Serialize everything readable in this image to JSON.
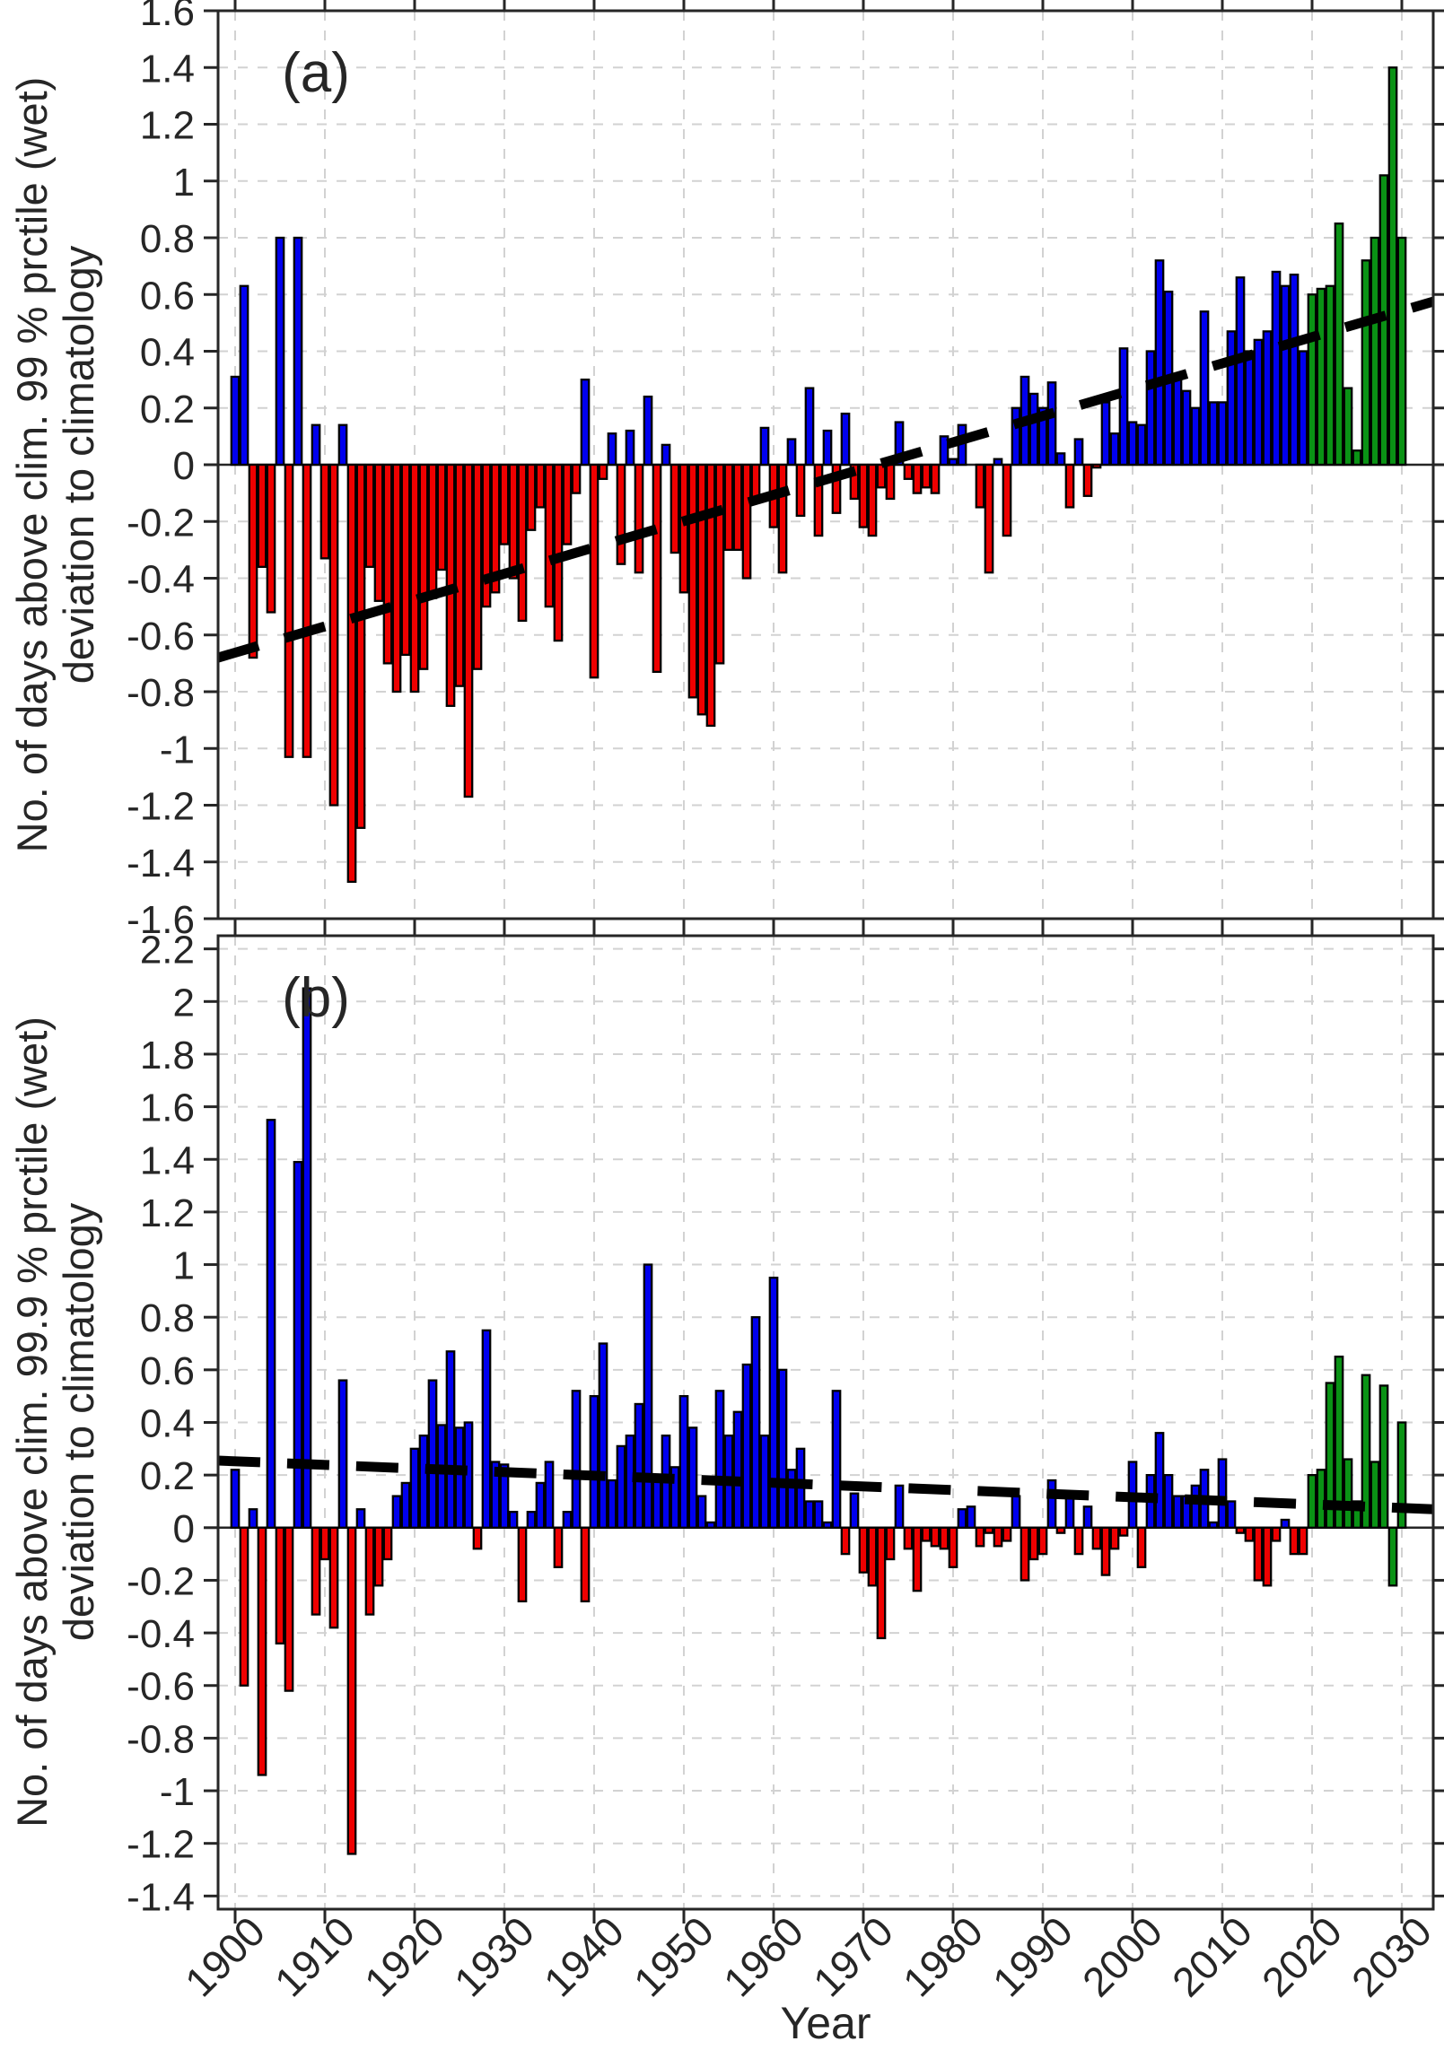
{
  "page": {
    "background": "#ffffff"
  },
  "figure": {
    "xlabel": "Year",
    "panel_a_label": "(a)",
    "panel_b_label": "(b)",
    "panel_a_ylabel_line1": "No. of days above clim. 99 % prctile (wet)",
    "panel_a_ylabel_line2": "deviation to climatology",
    "panel_b_ylabel_line1": "No. of days above clim. 99.9 % prctile (wet)",
    "panel_b_ylabel_line2": "deviation to climatology",
    "colors": {
      "historical_positive_bar": "#0000ee",
      "historical_negative_bar": "#ee0000",
      "future_bar": "#0a9215",
      "bar_edge": "#000000",
      "trend_line": "#000000",
      "grid": "#d2d2d2",
      "frame": "#262626",
      "text": "#262626"
    }
  },
  "chart_data": [
    {
      "id": "a",
      "type": "bar",
      "panel_label": "(a)",
      "ylabel": "No. of days above clim. 99 % prctile (wet) deviation to climatology",
      "xlabel": "Year",
      "x_years": {
        "start": 1900,
        "end": 2030,
        "step": 1
      },
      "values": [
        0.31,
        0.63,
        -0.68,
        -0.36,
        -0.52,
        0.8,
        -1.03,
        0.8,
        -1.03,
        0.14,
        -0.33,
        -1.2,
        0.14,
        -1.47,
        -1.28,
        -0.36,
        -0.48,
        -0.7,
        -0.8,
        -0.67,
        -0.8,
        -0.72,
        -0.47,
        -0.37,
        -0.85,
        -0.78,
        -1.17,
        -0.72,
        -0.5,
        -0.45,
        -0.28,
        -0.4,
        -0.55,
        -0.23,
        -0.15,
        -0.5,
        -0.62,
        -0.28,
        -0.1,
        0.3,
        -0.75,
        -0.05,
        0.11,
        -0.35,
        0.12,
        -0.38,
        0.24,
        -0.73,
        0.07,
        -0.31,
        -0.45,
        -0.82,
        -0.88,
        -0.92,
        -0.7,
        -0.3,
        -0.3,
        -0.4,
        -0.13,
        0.13,
        -0.22,
        -0.38,
        0.09,
        -0.18,
        0.27,
        -0.25,
        0.12,
        -0.17,
        0.18,
        -0.12,
        -0.22,
        -0.25,
        -0.08,
        -0.12,
        0.15,
        -0.05,
        -0.1,
        -0.08,
        -0.1,
        0.1,
        0.02,
        0.14,
        0.0,
        -0.15,
        -0.38,
        0.02,
        -0.25,
        0.2,
        0.31,
        0.25,
        0.2,
        0.29,
        0.04,
        -0.15,
        0.09,
        -0.11,
        -0.01,
        0.22,
        0.11,
        0.41,
        0.15,
        0.14,
        0.4,
        0.72,
        0.61,
        0.3,
        0.26,
        0.2,
        0.54,
        0.22,
        0.22,
        0.47,
        0.66,
        0.4,
        0.44,
        0.47,
        0.68,
        0.63,
        0.67,
        0.4,
        0.6,
        0.62,
        0.63,
        0.85,
        0.27,
        0.05,
        0.72,
        0.8,
        1.02,
        1.4,
        0.8
      ],
      "future_from_year": 2020,
      "ylim": [
        -1.6,
        1.6
      ],
      "yticks": [
        1.6,
        1.4,
        1.2,
        1,
        0.8,
        0.6,
        0.4,
        0.2,
        0,
        -0.2,
        -0.4,
        -0.6,
        -0.8,
        -1,
        -1.2,
        -1.4,
        -1.6
      ],
      "ytick_labels": [
        "1.6",
        "1.4",
        "1.2",
        "1",
        "0.8",
        "0.6",
        "0.4",
        "0.2",
        "0",
        "-0.2",
        "-0.4",
        "-0.6",
        "-0.8",
        "-1",
        "-1.2",
        "-1.4",
        "-1.6"
      ],
      "trend_line": {
        "style": "dashed",
        "color": "#000000",
        "x": [
          1898.1,
          2033.5
        ],
        "y": [
          -0.68,
          0.575
        ]
      },
      "grid": true,
      "legend": null
    },
    {
      "id": "b",
      "type": "bar",
      "panel_label": "(b)",
      "ylabel": "No. of days above clim. 99.9 % prctile (wet) deviation to climatology",
      "xlabel": "Year",
      "x_years": {
        "start": 1900,
        "end": 2030,
        "step": 1
      },
      "values": [
        0.22,
        -0.6,
        0.07,
        -0.94,
        1.55,
        -0.44,
        -0.62,
        1.39,
        2.05,
        -0.33,
        -0.12,
        -0.38,
        0.56,
        -1.24,
        0.07,
        -0.33,
        -0.22,
        -0.12,
        0.12,
        0.17,
        0.3,
        0.35,
        0.56,
        0.39,
        0.67,
        0.38,
        0.4,
        -0.08,
        0.75,
        0.25,
        0.24,
        0.06,
        -0.28,
        0.06,
        0.17,
        0.25,
        -0.15,
        0.06,
        0.52,
        -0.28,
        0.5,
        0.7,
        0.18,
        0.31,
        0.35,
        0.47,
        1.0,
        0.2,
        0.35,
        0.23,
        0.5,
        0.38,
        0.12,
        0.02,
        0.52,
        0.35,
        0.44,
        0.62,
        0.8,
        0.35,
        0.95,
        0.6,
        0.22,
        0.3,
        0.1,
        0.1,
        0.02,
        0.52,
        -0.1,
        0.13,
        -0.17,
        -0.22,
        -0.42,
        -0.12,
        0.16,
        -0.08,
        -0.24,
        -0.05,
        -0.07,
        -0.08,
        -0.15,
        0.07,
        0.08,
        -0.07,
        -0.02,
        -0.07,
        -0.05,
        0.12,
        -0.2,
        -0.12,
        -0.1,
        0.18,
        -0.02,
        0.12,
        -0.1,
        0.08,
        -0.08,
        -0.18,
        -0.08,
        -0.03,
        0.25,
        -0.15,
        0.2,
        0.36,
        0.2,
        0.12,
        0.12,
        0.16,
        0.22,
        0.02,
        0.26,
        0.1,
        -0.02,
        -0.05,
        -0.2,
        -0.22,
        -0.05,
        0.03,
        -0.1,
        -0.1,
        0.2,
        0.22,
        0.55,
        0.65,
        0.26,
        0.1,
        0.58,
        0.25,
        0.54,
        -0.22,
        0.4
      ],
      "future_from_year": 2020,
      "ylim": [
        -1.45,
        2.25
      ],
      "yticks": [
        2.2,
        2,
        1.8,
        1.6,
        1.4,
        1.2,
        1,
        0.8,
        0.6,
        0.4,
        0.2,
        0,
        -0.2,
        -0.4,
        -0.6,
        -0.8,
        -1,
        -1.2,
        -1.4
      ],
      "ytick_labels": [
        "2.2",
        "2",
        "1.8",
        "1.6",
        "1.4",
        "1.2",
        "1",
        "0.8",
        "0.6",
        "0.4",
        "0.2",
        "0",
        "-0.2",
        "-0.4",
        "-0.6",
        "-0.8",
        "-1",
        "-1.2",
        "-1.4"
      ],
      "trend_line": {
        "style": "dashed",
        "color": "#000000",
        "x": [
          1898.1,
          2033.5
        ],
        "y": [
          0.255,
          0.07
        ]
      },
      "grid": true,
      "legend": null
    }
  ],
  "xticks": [
    1900,
    1910,
    1920,
    1930,
    1940,
    1950,
    1960,
    1970,
    1980,
    1990,
    2000,
    2010,
    2020,
    2030
  ],
  "xtick_labels": [
    "1900",
    "1910",
    "1920",
    "1930",
    "1940",
    "1950",
    "1960",
    "1970",
    "1980",
    "1990",
    "2000",
    "2010",
    "2020",
    "2030"
  ],
  "xlim": [
    1898.1,
    2033.5
  ]
}
